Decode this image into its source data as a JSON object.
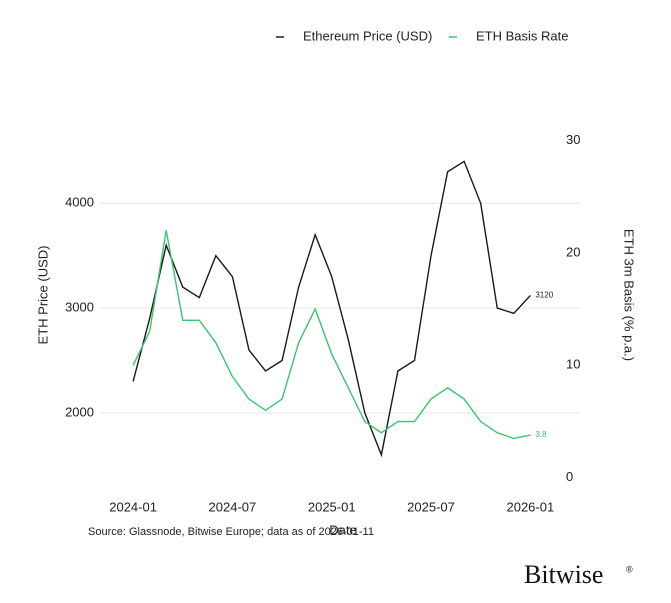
{
  "chart_data": {
    "type": "line",
    "x": [
      "2024-01",
      "2024-02",
      "2024-03",
      "2024-04",
      "2024-05",
      "2024-06",
      "2024-07",
      "2024-08",
      "2024-09",
      "2024-10",
      "2024-11",
      "2024-12",
      "2025-01",
      "2025-02",
      "2025-03",
      "2025-04",
      "2025-05",
      "2025-06",
      "2025-07",
      "2025-08",
      "2025-09",
      "2025-10",
      "2025-11",
      "2025-12",
      "2026-01"
    ],
    "series": [
      {
        "name": "Ethereum Price (USD)",
        "color": "#1a1a1a",
        "values": [
          2300,
          2900,
          3600,
          3200,
          3100,
          3500,
          3300,
          2600,
          2400,
          2500,
          3200,
          3700,
          3300,
          2700,
          2000,
          1600,
          2400,
          2500,
          3500,
          4300,
          4400,
          4000,
          3000,
          2950,
          3120
        ]
      },
      {
        "name": "ETH Basis Rate",
        "color": "#3cc46e",
        "axis": "y2",
        "values": [
          10,
          13,
          22,
          14,
          14,
          12,
          9,
          7,
          6,
          7,
          12,
          15,
          11,
          8,
          5,
          4,
          5,
          5,
          7,
          8,
          7,
          5,
          4,
          3.5,
          3.8
        ]
      }
    ],
    "xlabel": "Date",
    "ylabel": "ETH Price (USD)",
    "y2label": "ETH 3m Basis (% p.a.)",
    "xlim": [
      "2023-11",
      "2026-04"
    ],
    "xticks": [
      "2024-01",
      "2024-07",
      "2025-01",
      "2025-07",
      "2026-01"
    ],
    "ylim": [
      1360,
      4890
    ],
    "yticks": [
      2000,
      3000,
      4000
    ],
    "y2lim": [
      -0.2,
      32.7
    ],
    "y2ticks": [
      0,
      10,
      20,
      30
    ],
    "grid": true
  },
  "source": "Source: Glassnode, Bitwise Europe; data as of 2026-01-11",
  "brand": "Bitwise"
}
